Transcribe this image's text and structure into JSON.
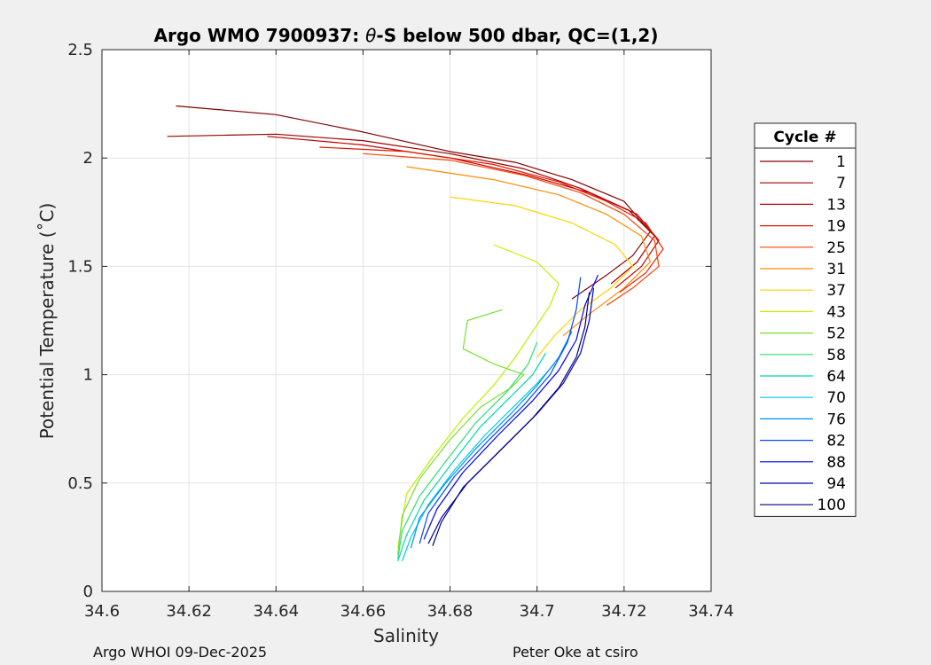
{
  "chart_data": {
    "type": "line",
    "title_prefix": "Argo WMO 7900937: ",
    "title_theta": "θ",
    "title_suffix": "-S below 500 dbar,  QC=(1,2)",
    "xlabel": "Salinity",
    "ylabel": "Potential Temperature (˚C)",
    "xlim": [
      34.6,
      34.74
    ],
    "ylim": [
      0,
      2.5
    ],
    "xticks": [
      34.6,
      34.62,
      34.64,
      34.66,
      34.68,
      34.7,
      34.72,
      34.74
    ],
    "xtick_labels": [
      "34.6",
      "34.62",
      "34.64",
      "34.66",
      "34.68",
      "34.7",
      "34.72",
      "34.74"
    ],
    "yticks": [
      0,
      0.5,
      1,
      1.5,
      2,
      2.5
    ],
    "ytick_labels": [
      "0",
      "0.5",
      "1",
      "1.5",
      "2",
      "2.5"
    ],
    "grid": true,
    "legend_title": "Cycle #",
    "legend_position": "outside-right",
    "series": [
      {
        "name": "1",
        "color": "#800000",
        "values": [
          [
            34.617,
            2.24
          ],
          [
            34.64,
            2.2
          ],
          [
            34.66,
            2.12
          ],
          [
            34.68,
            2.03
          ],
          [
            34.695,
            1.98
          ],
          [
            34.708,
            1.9
          ],
          [
            34.72,
            1.8
          ],
          [
            34.726,
            1.66
          ],
          [
            34.722,
            1.55
          ],
          [
            34.716,
            1.46
          ],
          [
            34.708,
            1.35
          ]
        ]
      },
      {
        "name": "7",
        "color": "#9e0000",
        "values": [
          [
            34.615,
            2.1
          ],
          [
            34.64,
            2.11
          ],
          [
            34.66,
            2.08
          ],
          [
            34.68,
            2.02
          ],
          [
            34.697,
            1.95
          ],
          [
            34.71,
            1.86
          ],
          [
            34.721,
            1.76
          ],
          [
            34.727,
            1.64
          ],
          [
            34.723,
            1.52
          ],
          [
            34.717,
            1.42
          ]
        ]
      },
      {
        "name": "13",
        "color": "#c00000",
        "values": [
          [
            34.638,
            2.1
          ],
          [
            34.66,
            2.06
          ],
          [
            34.68,
            2.0
          ],
          [
            34.698,
            1.92
          ],
          [
            34.712,
            1.84
          ],
          [
            34.723,
            1.74
          ],
          [
            34.728,
            1.62
          ],
          [
            34.724,
            1.5
          ],
          [
            34.718,
            1.4
          ]
        ]
      },
      {
        "name": "19",
        "color": "#e01800",
        "values": [
          [
            34.65,
            2.05
          ],
          [
            34.67,
            2.03
          ],
          [
            34.69,
            1.97
          ],
          [
            34.705,
            1.89
          ],
          [
            34.716,
            1.8
          ],
          [
            34.725,
            1.7
          ],
          [
            34.729,
            1.58
          ],
          [
            34.725,
            1.47
          ],
          [
            34.719,
            1.38
          ]
        ]
      },
      {
        "name": "25",
        "color": "#ff4000",
        "values": [
          [
            34.66,
            2.02
          ],
          [
            34.68,
            1.99
          ],
          [
            34.697,
            1.92
          ],
          [
            34.71,
            1.84
          ],
          [
            34.72,
            1.74
          ],
          [
            34.727,
            1.62
          ],
          [
            34.728,
            1.5
          ],
          [
            34.722,
            1.4
          ],
          [
            34.716,
            1.32
          ]
        ]
      },
      {
        "name": "31",
        "color": "#ff8a00",
        "values": [
          [
            34.67,
            1.96
          ],
          [
            34.69,
            1.9
          ],
          [
            34.705,
            1.83
          ],
          [
            34.716,
            1.74
          ],
          [
            34.724,
            1.64
          ],
          [
            34.726,
            1.52
          ],
          [
            34.72,
            1.4
          ],
          [
            34.712,
            1.28
          ],
          [
            34.706,
            1.18
          ]
        ]
      },
      {
        "name": "37",
        "color": "#ffd400",
        "values": [
          [
            34.68,
            1.82
          ],
          [
            34.695,
            1.78
          ],
          [
            34.708,
            1.7
          ],
          [
            34.718,
            1.6
          ],
          [
            34.722,
            1.5
          ],
          [
            34.717,
            1.4
          ],
          [
            34.71,
            1.3
          ],
          [
            34.704,
            1.18
          ],
          [
            34.7,
            1.08
          ]
        ]
      },
      {
        "name": "43",
        "color": "#c0f000",
        "values": [
          [
            34.69,
            1.6
          ],
          [
            34.7,
            1.52
          ],
          [
            34.705,
            1.42
          ],
          [
            34.703,
            1.32
          ],
          [
            34.699,
            1.2
          ],
          [
            34.695,
            1.08
          ],
          [
            34.69,
            0.95
          ],
          [
            34.683,
            0.8
          ],
          [
            34.676,
            0.62
          ],
          [
            34.67,
            0.45
          ],
          [
            34.668,
            0.2
          ]
        ]
      },
      {
        "name": "52",
        "color": "#78e030",
        "values": [
          [
            34.692,
            1.3
          ],
          [
            34.684,
            1.25
          ],
          [
            34.683,
            1.12
          ],
          [
            34.69,
            1.05
          ],
          [
            34.697,
            1.0
          ],
          [
            34.694,
            0.94
          ],
          [
            34.687,
            0.85
          ],
          [
            34.68,
            0.7
          ],
          [
            34.673,
            0.52
          ],
          [
            34.669,
            0.35
          ],
          [
            34.668,
            0.17
          ]
        ]
      },
      {
        "name": "58",
        "color": "#2ee06e",
        "values": [
          [
            34.7,
            1.15
          ],
          [
            34.698,
            1.05
          ],
          [
            34.693,
            0.92
          ],
          [
            34.686,
            0.78
          ],
          [
            34.679,
            0.6
          ],
          [
            34.673,
            0.44
          ],
          [
            34.669,
            0.28
          ],
          [
            34.668,
            0.15
          ]
        ]
      },
      {
        "name": "64",
        "color": "#00d8a8",
        "values": [
          [
            34.702,
            1.1
          ],
          [
            34.699,
            1.0
          ],
          [
            34.694,
            0.9
          ],
          [
            34.687,
            0.76
          ],
          [
            34.68,
            0.58
          ],
          [
            34.674,
            0.42
          ],
          [
            34.67,
            0.26
          ],
          [
            34.668,
            0.14
          ]
        ]
      },
      {
        "name": "70",
        "color": "#00c8e8",
        "values": [
          [
            34.704,
            1.05
          ],
          [
            34.7,
            0.96
          ],
          [
            34.695,
            0.86
          ],
          [
            34.688,
            0.72
          ],
          [
            34.681,
            0.56
          ],
          [
            34.675,
            0.4
          ],
          [
            34.671,
            0.25
          ],
          [
            34.669,
            0.14
          ]
        ]
      },
      {
        "name": "76",
        "color": "#0090ff",
        "values": [
          [
            34.708,
            1.2
          ],
          [
            34.705,
            1.08
          ],
          [
            34.7,
            0.95
          ],
          [
            34.694,
            0.82
          ],
          [
            34.686,
            0.66
          ],
          [
            34.679,
            0.5
          ],
          [
            34.673,
            0.34
          ],
          [
            34.671,
            0.2
          ]
        ]
      },
      {
        "name": "82",
        "color": "#0048ff",
        "values": [
          [
            34.71,
            1.45
          ],
          [
            34.709,
            1.3
          ],
          [
            34.707,
            1.15
          ],
          [
            34.703,
            1.0
          ],
          [
            34.697,
            0.86
          ],
          [
            34.689,
            0.7
          ],
          [
            34.681,
            0.53
          ],
          [
            34.675,
            0.36
          ],
          [
            34.673,
            0.22
          ]
        ]
      },
      {
        "name": "88",
        "color": "#0000f0",
        "values": [
          [
            34.714,
            1.46
          ],
          [
            34.711,
            1.32
          ],
          [
            34.709,
            1.16
          ],
          [
            34.705,
            1.02
          ],
          [
            34.699,
            0.88
          ],
          [
            34.691,
            0.72
          ],
          [
            34.683,
            0.55
          ],
          [
            34.677,
            0.38
          ],
          [
            34.674,
            0.24
          ]
        ]
      },
      {
        "name": "94",
        "color": "#0000b8",
        "values": [
          [
            34.713,
            1.4
          ],
          [
            34.712,
            1.25
          ],
          [
            34.71,
            1.1
          ],
          [
            34.706,
            0.96
          ],
          [
            34.7,
            0.82
          ],
          [
            34.692,
            0.66
          ],
          [
            34.684,
            0.5
          ],
          [
            34.678,
            0.34
          ],
          [
            34.675,
            0.22
          ]
        ]
      },
      {
        "name": "100",
        "color": "#000080",
        "values": [
          [
            34.712,
            1.38
          ],
          [
            34.711,
            1.22
          ],
          [
            34.709,
            1.08
          ],
          [
            34.705,
            0.94
          ],
          [
            34.699,
            0.8
          ],
          [
            34.691,
            0.64
          ],
          [
            34.683,
            0.48
          ],
          [
            34.678,
            0.32
          ],
          [
            34.676,
            0.21
          ]
        ]
      }
    ]
  },
  "footer": {
    "left": "Argo WHOI 09-Dec-2025",
    "right": "Peter Oke at csiro"
  }
}
